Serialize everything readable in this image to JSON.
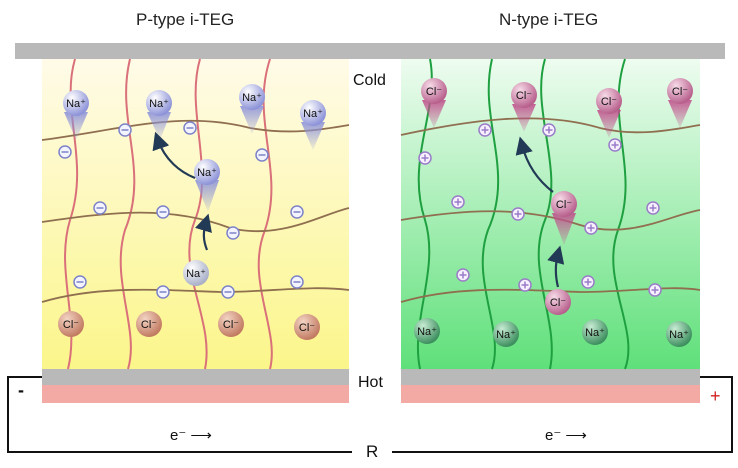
{
  "panels": {
    "p_title": "P-type i-TEG",
    "n_title": "N-type i-TEG"
  },
  "labels": {
    "cold": "Cold",
    "hot": "Hot",
    "resistor": "R",
    "minus": "-",
    "plus": "+",
    "electron_flow_left": "e⁻ ⟶",
    "electron_flow_right": "e⁻ ⟶"
  },
  "ions": {
    "na": "Na⁺",
    "cl": "Cl⁻"
  },
  "colors": {
    "plate_gray": "#b9b9b9",
    "hot_plate": "#f4aaa4",
    "p_gradient_top": "#fffbe8",
    "p_gradient_bottom": "#fbf68a",
    "n_gradient_top": "#eefcf0",
    "n_gradient_bottom": "#5fe07a",
    "p_chain": "#d9707a",
    "n_chain": "#1fa040",
    "cross_chain": "#8f6f50",
    "na_ion_blue": "#8d93d8",
    "cl_ion_brown": "#c88670",
    "cl_ion_pink": "#c07098",
    "na_ion_green": "#4f9a6e"
  }
}
